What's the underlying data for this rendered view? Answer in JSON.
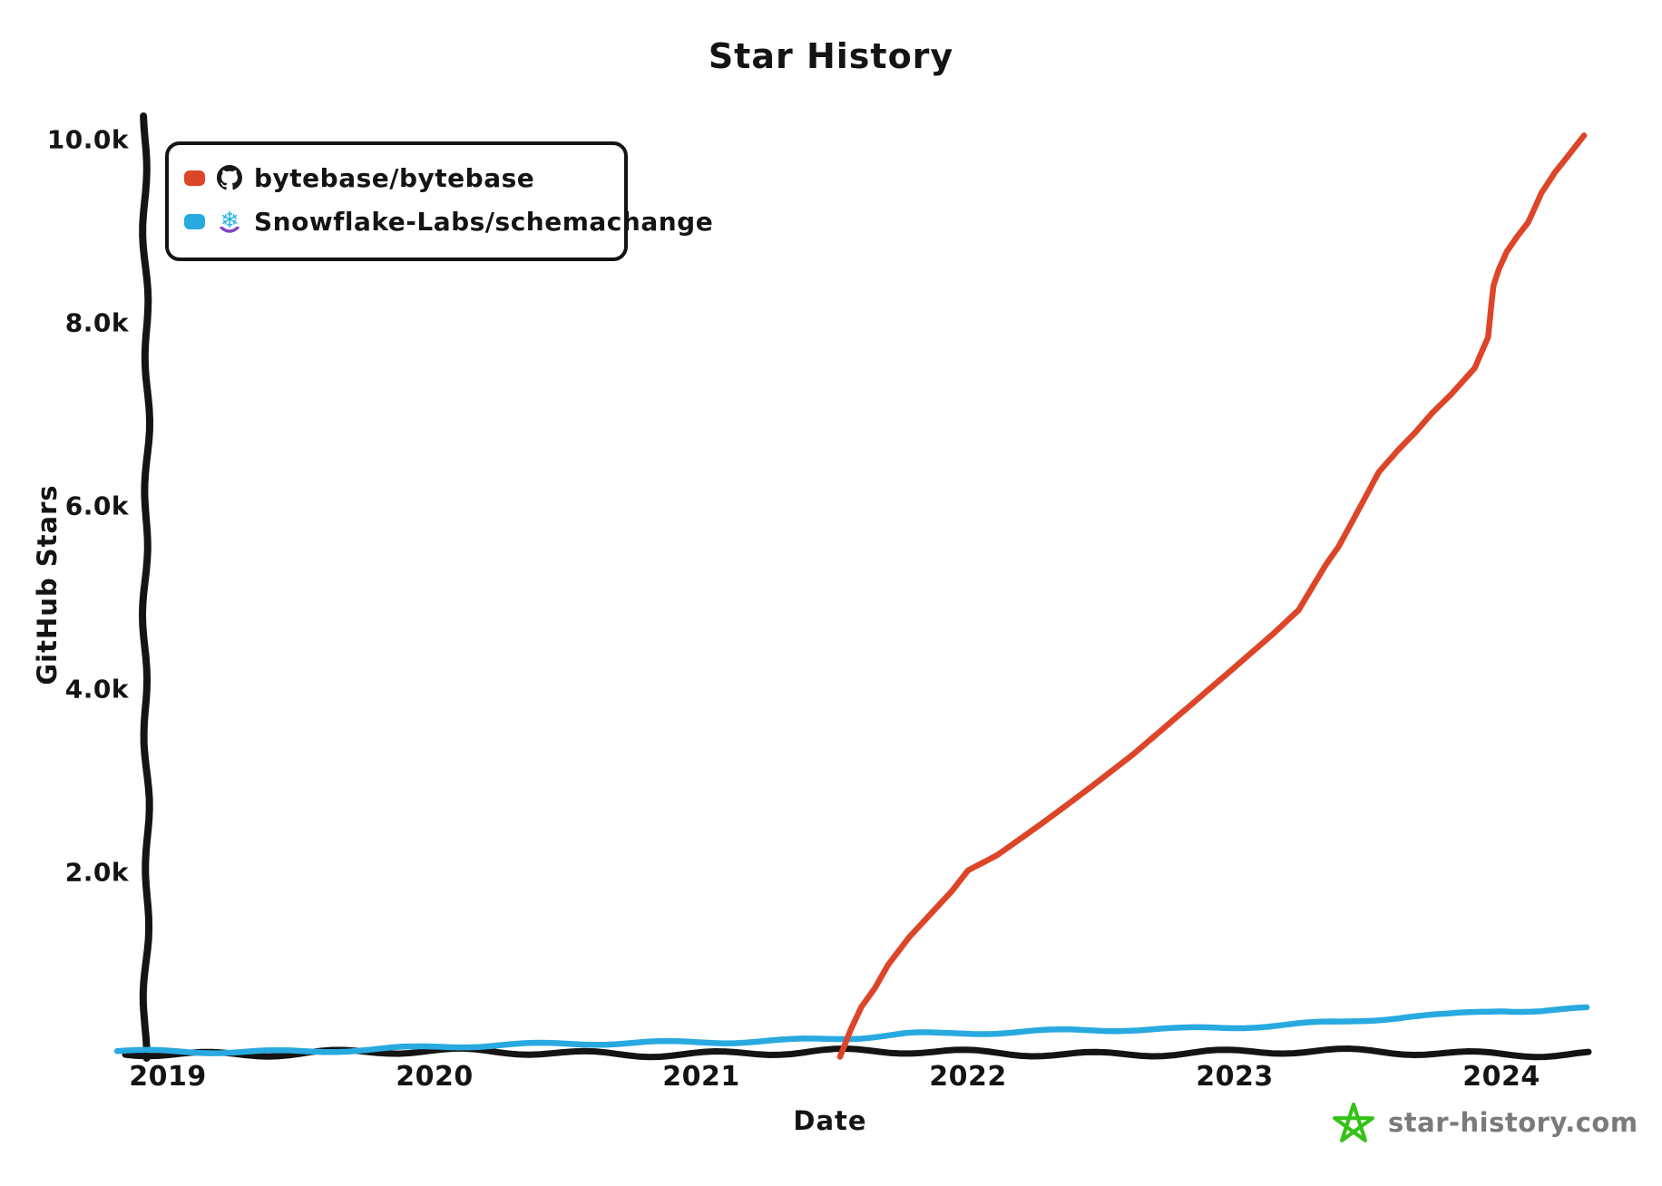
{
  "title": "Star History",
  "axes": {
    "x_label": "Date",
    "y_label": "GitHub Stars",
    "y_ticks": [
      {
        "label": "10.0k",
        "value": 10000
      },
      {
        "label": "8.0k",
        "value": 8000
      },
      {
        "label": "6.0k",
        "value": 6000
      },
      {
        "label": "4.0k",
        "value": 4000
      },
      {
        "label": "2.0k",
        "value": 2000
      }
    ],
    "x_ticks": [
      {
        "label": "2019",
        "value": 2019
      },
      {
        "label": "2020",
        "value": 2020
      },
      {
        "label": "2021",
        "value": 2021
      },
      {
        "label": "2022",
        "value": 2022
      },
      {
        "label": "2023",
        "value": 2023
      },
      {
        "label": "2024",
        "value": 2024
      }
    ]
  },
  "legend": {
    "items": [
      {
        "label": "bytebase/bytebase",
        "color": "#dd4528",
        "icon": "github-octocat"
      },
      {
        "label": "Snowflake-Labs/schemachange",
        "color": "#28a9e0",
        "icon": "snowflake"
      }
    ]
  },
  "icons": {
    "snowflake_glyph": "❄",
    "snowflake_color": "#29b5e8",
    "snowflake_arc_color": "#8247c5",
    "github_color": "#191717"
  },
  "watermark": {
    "text": "star-history.com",
    "text_color": "#7a7a7a",
    "star_color": "#35c218"
  },
  "colors": {
    "axis": "#141414",
    "background": "#ffffff"
  },
  "chart_data": {
    "type": "line",
    "title": "Star History",
    "xlabel": "Date",
    "ylabel": "GitHub Stars",
    "x_unit": "decimal year",
    "x_range": [
      2018.81,
      2024.35
    ],
    "ylim": [
      0,
      10000
    ],
    "grid": false,
    "legend_position": "top-left",
    "series": [
      {
        "name": "bytebase/bytebase",
        "color": "#dd4528",
        "points": [
          [
            2021.52,
            0
          ],
          [
            2021.56,
            300
          ],
          [
            2021.6,
            550
          ],
          [
            2021.65,
            750
          ],
          [
            2021.7,
            1000
          ],
          [
            2021.78,
            1300
          ],
          [
            2021.86,
            1550
          ],
          [
            2021.94,
            1800
          ],
          [
            2022.0,
            2020
          ],
          [
            2022.11,
            2200
          ],
          [
            2022.28,
            2560
          ],
          [
            2022.45,
            2930
          ],
          [
            2022.62,
            3310
          ],
          [
            2022.79,
            3730
          ],
          [
            2022.96,
            4150
          ],
          [
            2023.14,
            4600
          ],
          [
            2023.24,
            4870
          ],
          [
            2023.34,
            5370
          ],
          [
            2023.39,
            5580
          ],
          [
            2023.47,
            6010
          ],
          [
            2023.54,
            6380
          ],
          [
            2023.61,
            6610
          ],
          [
            2023.68,
            6820
          ],
          [
            2023.74,
            7020
          ],
          [
            2023.81,
            7220
          ],
          [
            2023.9,
            7510
          ],
          [
            2023.95,
            7830
          ],
          [
            2023.97,
            8390
          ],
          [
            2023.99,
            8580
          ],
          [
            2024.02,
            8780
          ],
          [
            2024.06,
            8950
          ],
          [
            2024.1,
            9100
          ],
          [
            2024.15,
            9420
          ],
          [
            2024.2,
            9640
          ],
          [
            2024.25,
            9820
          ],
          [
            2024.31,
            10040
          ]
        ]
      },
      {
        "name": "Snowflake-Labs/schemachange",
        "color": "#28a9e0",
        "points": [
          [
            2018.81,
            35
          ],
          [
            2019.0,
            40
          ],
          [
            2019.2,
            45
          ],
          [
            2019.5,
            55
          ],
          [
            2019.8,
            75
          ],
          [
            2020.0,
            90
          ],
          [
            2020.3,
            105
          ],
          [
            2020.6,
            125
          ],
          [
            2021.0,
            155
          ],
          [
            2021.3,
            170
          ],
          [
            2021.6,
            200
          ],
          [
            2021.77,
            230
          ],
          [
            2021.9,
            225
          ],
          [
            2022.1,
            240
          ],
          [
            2022.3,
            260
          ],
          [
            2022.6,
            290
          ],
          [
            2022.8,
            300
          ],
          [
            2023.0,
            320
          ],
          [
            2023.2,
            340
          ],
          [
            2023.4,
            360
          ],
          [
            2023.65,
            415
          ],
          [
            2023.8,
            430
          ],
          [
            2024.0,
            485
          ],
          [
            2024.15,
            490
          ],
          [
            2024.32,
            515
          ]
        ]
      }
    ]
  }
}
